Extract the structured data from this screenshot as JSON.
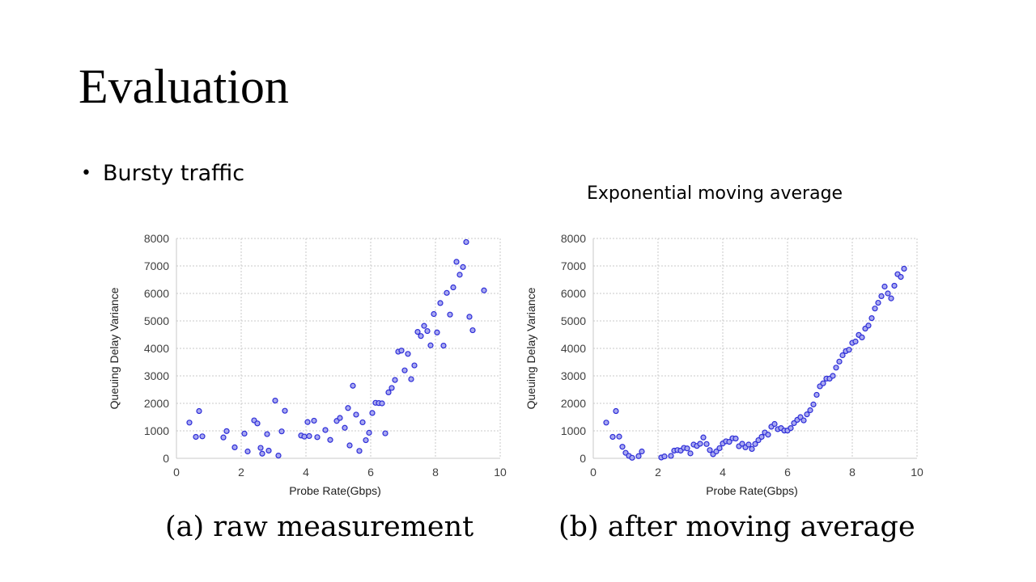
{
  "slide": {
    "title": "Evaluation",
    "bullet": "Bursty traffic",
    "annotation": "Exponential moving average"
  },
  "colors": {
    "marker_stroke": "#2d2dd8",
    "marker_fill": "#a8a8f0",
    "grid": "#c8c8c8",
    "axis_text": "#404040"
  },
  "chart_data": [
    {
      "type": "scatter",
      "caption": "(a) raw measurement",
      "xlabel": "Probe Rate(Gbps)",
      "ylabel": "Queuing Delay Variance",
      "xlim": [
        0,
        10
      ],
      "ylim": [
        0,
        8000
      ],
      "xticks": [
        0,
        2,
        4,
        6,
        8,
        10
      ],
      "yticks": [
        0,
        1000,
        2000,
        3000,
        4000,
        5000,
        6000,
        7000,
        8000
      ],
      "grid": true,
      "points": [
        [
          0.4,
          1300
        ],
        [
          0.6,
          780
        ],
        [
          0.7,
          1720
        ],
        [
          0.8,
          800
        ],
        [
          1.45,
          760
        ],
        [
          1.55,
          990
        ],
        [
          1.8,
          400
        ],
        [
          2.1,
          900
        ],
        [
          2.2,
          250
        ],
        [
          2.4,
          1380
        ],
        [
          2.5,
          1270
        ],
        [
          2.6,
          380
        ],
        [
          2.65,
          170
        ],
        [
          2.8,
          880
        ],
        [
          2.85,
          280
        ],
        [
          3.05,
          2100
        ],
        [
          3.15,
          100
        ],
        [
          3.25,
          980
        ],
        [
          3.35,
          1730
        ],
        [
          3.85,
          830
        ],
        [
          3.95,
          790
        ],
        [
          4.05,
          1320
        ],
        [
          4.1,
          810
        ],
        [
          4.25,
          1370
        ],
        [
          4.35,
          770
        ],
        [
          4.6,
          1030
        ],
        [
          4.75,
          670
        ],
        [
          4.95,
          1360
        ],
        [
          5.05,
          1470
        ],
        [
          5.2,
          1110
        ],
        [
          5.3,
          1830
        ],
        [
          5.35,
          470
        ],
        [
          5.45,
          2640
        ],
        [
          5.55,
          1590
        ],
        [
          5.65,
          270
        ],
        [
          5.75,
          1310
        ],
        [
          5.85,
          660
        ],
        [
          5.95,
          930
        ],
        [
          6.05,
          1650
        ],
        [
          6.15,
          2020
        ],
        [
          6.25,
          2010
        ],
        [
          6.35,
          2000
        ],
        [
          6.45,
          910
        ],
        [
          6.55,
          2400
        ],
        [
          6.65,
          2560
        ],
        [
          6.75,
          2850
        ],
        [
          6.85,
          3880
        ],
        [
          6.95,
          3920
        ],
        [
          7.05,
          3200
        ],
        [
          7.15,
          3800
        ],
        [
          7.25,
          2880
        ],
        [
          7.35,
          3380
        ],
        [
          7.45,
          4600
        ],
        [
          7.55,
          4450
        ],
        [
          7.65,
          4820
        ],
        [
          7.75,
          4630
        ],
        [
          7.85,
          4110
        ],
        [
          7.95,
          5250
        ],
        [
          8.05,
          4580
        ],
        [
          8.15,
          5650
        ],
        [
          8.25,
          4100
        ],
        [
          8.35,
          6020
        ],
        [
          8.45,
          5230
        ],
        [
          8.55,
          6220
        ],
        [
          8.65,
          7150
        ],
        [
          8.75,
          6680
        ],
        [
          8.85,
          6960
        ],
        [
          8.95,
          7870
        ],
        [
          9.05,
          5150
        ],
        [
          9.15,
          4660
        ],
        [
          9.5,
          6110
        ]
      ]
    },
    {
      "type": "scatter",
      "caption": "(b) after moving average",
      "xlabel": "Probe Rate(Gbps)",
      "ylabel": "Queuing Delay Variance",
      "xlim": [
        0,
        10
      ],
      "ylim": [
        0,
        8000
      ],
      "xticks": [
        0,
        2,
        4,
        6,
        8,
        10
      ],
      "yticks": [
        0,
        1000,
        2000,
        3000,
        4000,
        5000,
        6000,
        7000,
        8000
      ],
      "grid": true,
      "points": [
        [
          0.4,
          1300
        ],
        [
          0.6,
          780
        ],
        [
          0.7,
          1720
        ],
        [
          0.8,
          790
        ],
        [
          0.9,
          420
        ],
        [
          1.0,
          200
        ],
        [
          1.1,
          90
        ],
        [
          1.2,
          20
        ],
        [
          1.4,
          80
        ],
        [
          1.5,
          250
        ],
        [
          2.1,
          30
        ],
        [
          2.2,
          70
        ],
        [
          2.4,
          90
        ],
        [
          2.5,
          280
        ],
        [
          2.6,
          300
        ],
        [
          2.7,
          280
        ],
        [
          2.8,
          380
        ],
        [
          2.9,
          360
        ],
        [
          3.0,
          180
        ],
        [
          3.1,
          500
        ],
        [
          3.2,
          450
        ],
        [
          3.3,
          530
        ],
        [
          3.4,
          760
        ],
        [
          3.5,
          520
        ],
        [
          3.6,
          300
        ],
        [
          3.7,
          150
        ],
        [
          3.8,
          250
        ],
        [
          3.9,
          370
        ],
        [
          4.0,
          540
        ],
        [
          4.1,
          620
        ],
        [
          4.2,
          600
        ],
        [
          4.3,
          730
        ],
        [
          4.4,
          720
        ],
        [
          4.5,
          440
        ],
        [
          4.6,
          530
        ],
        [
          4.7,
          400
        ],
        [
          4.8,
          500
        ],
        [
          4.9,
          340
        ],
        [
          5.0,
          520
        ],
        [
          5.1,
          660
        ],
        [
          5.2,
          780
        ],
        [
          5.3,
          940
        ],
        [
          5.4,
          860
        ],
        [
          5.5,
          1150
        ],
        [
          5.6,
          1250
        ],
        [
          5.7,
          1060
        ],
        [
          5.8,
          1100
        ],
        [
          5.9,
          1010
        ],
        [
          6.0,
          1010
        ],
        [
          6.1,
          1100
        ],
        [
          6.2,
          1280
        ],
        [
          6.3,
          1400
        ],
        [
          6.4,
          1500
        ],
        [
          6.5,
          1380
        ],
        [
          6.6,
          1600
        ],
        [
          6.7,
          1750
        ],
        [
          6.8,
          1960
        ],
        [
          6.9,
          2310
        ],
        [
          7.0,
          2620
        ],
        [
          7.1,
          2730
        ],
        [
          7.2,
          2900
        ],
        [
          7.3,
          2900
        ],
        [
          7.4,
          3000
        ],
        [
          7.5,
          3300
        ],
        [
          7.6,
          3520
        ],
        [
          7.7,
          3750
        ],
        [
          7.8,
          3900
        ],
        [
          7.9,
          3950
        ],
        [
          8.0,
          4200
        ],
        [
          8.1,
          4250
        ],
        [
          8.2,
          4490
        ],
        [
          8.3,
          4400
        ],
        [
          8.4,
          4720
        ],
        [
          8.5,
          4830
        ],
        [
          8.6,
          5100
        ],
        [
          8.7,
          5450
        ],
        [
          8.8,
          5660
        ],
        [
          8.9,
          5900
        ],
        [
          9.0,
          6250
        ],
        [
          9.1,
          6000
        ],
        [
          9.2,
          5820
        ],
        [
          9.3,
          6280
        ],
        [
          9.4,
          6700
        ],
        [
          9.5,
          6600
        ],
        [
          9.6,
          6900
        ]
      ]
    }
  ]
}
